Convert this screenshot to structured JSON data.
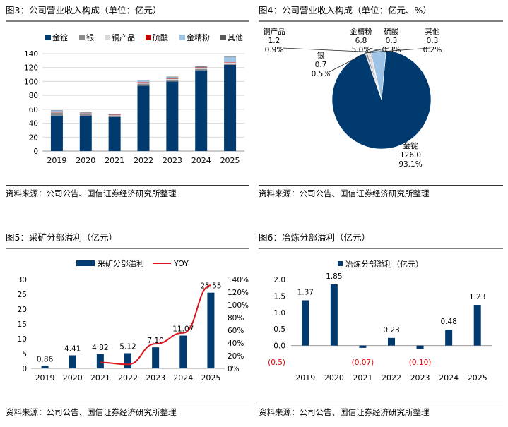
{
  "source_note": "资料来源：公司公告、国信证券经济研究所整理",
  "colors": {
    "gold": "#003a6e",
    "silver": "#8c8c8c",
    "copper_product": "#d9d9d9",
    "sulfuric_acid": "#c00000",
    "gold_powder": "#9dc3e6",
    "other": "#595959",
    "yoy_line": "#d9161c",
    "negative_label": "#e00000"
  },
  "chart_data": [
    {
      "id": "fig3",
      "title": "图3：公司营业收入构成（单位：亿元）",
      "type": "stacked-bar",
      "categories": [
        "2019",
        "2020",
        "2021",
        "2022",
        "2023",
        "2024",
        "2025"
      ],
      "series": [
        {
          "name": "金锭",
          "color_key": "gold",
          "values": [
            51,
            51,
            49,
            94,
            100,
            116,
            124
          ]
        },
        {
          "name": "银",
          "color_key": "silver",
          "values": [
            4,
            2,
            2,
            3,
            2,
            2,
            2
          ]
        },
        {
          "name": "铜产品",
          "color_key": "copper_product",
          "values": [
            1,
            1,
            1,
            2,
            2,
            2,
            1.5
          ]
        },
        {
          "name": "硫酸",
          "color_key": "sulfuric_acid",
          "values": [
            0.1,
            0.1,
            0.2,
            0.6,
            0.4,
            0.3,
            0.5
          ]
        },
        {
          "name": "金精粉",
          "color_key": "gold_powder",
          "values": [
            2,
            1,
            1,
            2,
            2,
            1,
            7
          ]
        },
        {
          "name": "其他",
          "color_key": "other",
          "values": [
            0.3,
            0.3,
            0.3,
            0.5,
            0.5,
            0.5,
            0.5
          ]
        }
      ],
      "ylim": [
        0,
        140
      ],
      "yticks": [
        0,
        20,
        40,
        60,
        80,
        100,
        120,
        140
      ],
      "grid": true,
      "legend": "top"
    },
    {
      "id": "fig4",
      "title": "图4：公司营业收入构成（单位：亿元、%）",
      "type": "pie",
      "slices": [
        {
          "name": "金锭",
          "value": 126.0,
          "value_label": "126.0",
          "pct_label": "93.1%",
          "color_key": "gold"
        },
        {
          "name": "银",
          "value": 0.7,
          "value_label": "0.7",
          "pct_label": "0.5%",
          "color_key": "silver"
        },
        {
          "name": "铜产品",
          "value": 1.2,
          "value_label": "1.2",
          "pct_label": "0.9%",
          "color_key": "copper_product"
        },
        {
          "name": "硫酸",
          "value": 0.3,
          "value_label": "0.3",
          "pct_label": "0.3%",
          "color_key": "sulfuric_acid"
        },
        {
          "name": "金精粉",
          "value": 6.8,
          "value_label": "6.8",
          "pct_label": "5.0%",
          "color_key": "gold_powder"
        },
        {
          "name": "其他",
          "value": 0.3,
          "value_label": "0.3",
          "pct_label": "0.2%",
          "color_key": "other"
        }
      ]
    },
    {
      "id": "fig5",
      "title": "图5：采矿分部溢利（亿元）",
      "type": "bar-line",
      "categories": [
        "2019",
        "2020",
        "2021",
        "2022",
        "2023",
        "2024",
        "2025"
      ],
      "bar_series": {
        "name": "采矿分部溢利",
        "color_key": "gold",
        "values": [
          0.86,
          4.41,
          4.82,
          5.12,
          7.1,
          11.07,
          25.55
        ],
        "labels": [
          "0.86",
          "4.41",
          "4.82",
          "5.12",
          "7.10",
          "11.07",
          "25.55"
        ]
      },
      "line_series": {
        "name": "YOY",
        "color_key": "yoy_line",
        "values": [
          null,
          null,
          9.3,
          6.2,
          38.7,
          55.9,
          130.8
        ]
      },
      "ylim": [
        0,
        30
      ],
      "yticks": [
        0,
        5,
        10,
        15,
        20,
        25,
        30
      ],
      "y2lim": [
        0,
        140
      ],
      "y2ticks": [
        "0%",
        "20%",
        "40%",
        "60%",
        "80%",
        "100%",
        "120%",
        "140%"
      ],
      "legend": "top"
    },
    {
      "id": "fig6",
      "title": "图6：冶炼分部溢利（亿元）",
      "type": "bar",
      "categories": [
        "2019",
        "2020",
        "2021",
        "2022",
        "2023",
        "2024",
        "2025"
      ],
      "series": [
        {
          "name": "冶炼分部溢利（亿元）",
          "color_key": "gold",
          "values": [
            1.37,
            1.85,
            -0.07,
            0.23,
            -0.1,
            0.48,
            1.23
          ],
          "labels": [
            "1.37",
            "1.85",
            "(0.07)",
            "0.23",
            "(0.10)",
            "0.48",
            "1.23"
          ]
        }
      ],
      "ylim": [
        -0.5,
        2.0
      ],
      "yticks": [
        -0.5,
        0.0,
        0.5,
        1.0,
        1.5,
        2.0
      ],
      "ytick_labels": [
        "(0.5)",
        "0.0",
        "0.5",
        "1.0",
        "1.5",
        "2.0"
      ],
      "legend": "top"
    }
  ]
}
